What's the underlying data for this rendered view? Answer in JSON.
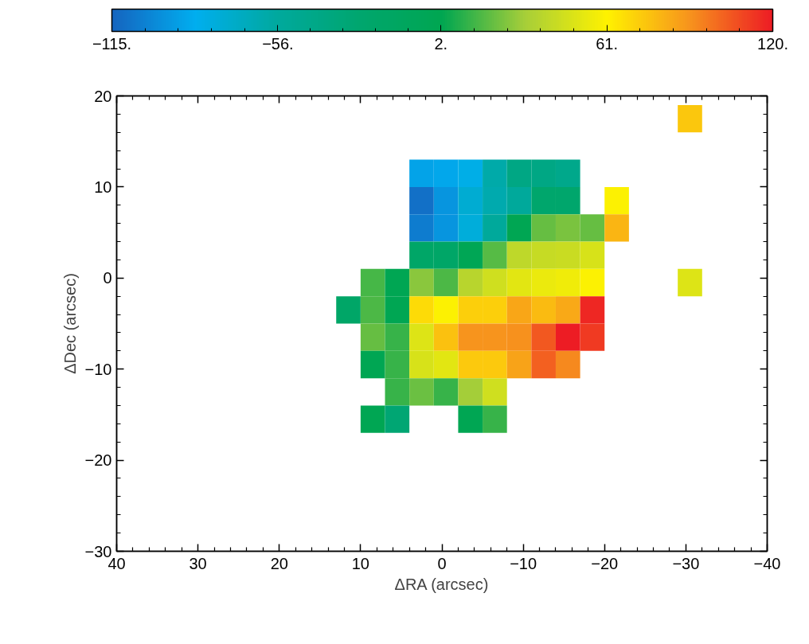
{
  "chart_data": {
    "type": "heatmap",
    "xlabel": "ΔRA (arcsec)",
    "ylabel": "ΔDec (arcsec)",
    "x": [
      11.5,
      8.5,
      5.5,
      2.5,
      -0.5,
      -3.5,
      -6.5,
      -9.5,
      -12.5,
      -15.5,
      -18.5,
      -21.5,
      -24.5,
      -27.5,
      -30.5
    ],
    "y": [
      17.5,
      11.5,
      8.5,
      5.5,
      2.5,
      -0.5,
      -3.5,
      -6.5,
      -9.5,
      -12.5,
      -15.5
    ],
    "cells": [
      [
        null,
        null,
        null,
        null,
        null,
        null,
        null,
        null,
        null,
        null,
        null,
        null,
        null,
        null,
        75
      ],
      [
        null,
        null,
        null,
        -90,
        -88,
        -82,
        -60,
        -40,
        -40,
        -45,
        null,
        null,
        null,
        null,
        null
      ],
      [
        null,
        null,
        null,
        -110,
        -95,
        -75,
        -62,
        -55,
        -25,
        -25,
        null,
        60,
        null,
        null,
        null
      ],
      [
        null,
        null,
        null,
        -105,
        -95,
        -78,
        -55,
        0,
        20,
        24,
        20,
        80,
        null,
        null,
        null
      ],
      [
        null,
        null,
        null,
        -20,
        -20,
        -2,
        18,
        40,
        42,
        43,
        48,
        null,
        null,
        null,
        null
      ],
      [
        null,
        15,
        0,
        27,
        16,
        38,
        45,
        52,
        54,
        56,
        60,
        null,
        null,
        null,
        50
      ],
      [
        -20,
        16,
        0,
        68,
        60,
        72,
        72,
        85,
        78,
        84,
        117,
        null,
        null,
        null,
        null
      ],
      [
        null,
        20,
        12,
        50,
        76,
        90,
        90,
        91,
        105,
        120,
        112,
        null,
        null,
        null,
        null
      ],
      [
        null,
        0,
        12,
        48,
        52,
        74,
        74,
        86,
        103,
        93,
        null,
        null,
        null,
        null,
        null
      ],
      [
        null,
        null,
        12,
        21,
        12,
        31,
        45,
        null,
        null,
        null,
        null,
        null,
        null,
        null,
        null
      ],
      [
        null,
        0,
        -30,
        null,
        null,
        0,
        12,
        null,
        null,
        null,
        null,
        null,
        null,
        null,
        null
      ]
    ],
    "clim": [
      -115,
      120
    ],
    "cticks": [
      {
        "value": -115,
        "label": "−115."
      },
      {
        "value": -56,
        "label": "−56."
      },
      {
        "value": 2,
        "label": "2."
      },
      {
        "value": 61,
        "label": "61."
      },
      {
        "value": 120,
        "label": "120."
      }
    ],
    "xlim": [
      40,
      -40
    ],
    "xticks": [
      40,
      30,
      20,
      10,
      0,
      {
        "value": -10,
        "label": "−10"
      },
      {
        "value": -20,
        "label": "−20"
      },
      {
        "value": -30,
        "label": "−30"
      },
      {
        "value": -40,
        "label": "−40"
      }
    ],
    "ylim": [
      -30,
      20
    ],
    "yticks": [
      {
        "value": -30,
        "label": "−30"
      },
      {
        "value": -20,
        "label": "−20"
      },
      {
        "value": -10,
        "label": "−10"
      },
      0,
      10,
      20
    ],
    "grid": false
  }
}
